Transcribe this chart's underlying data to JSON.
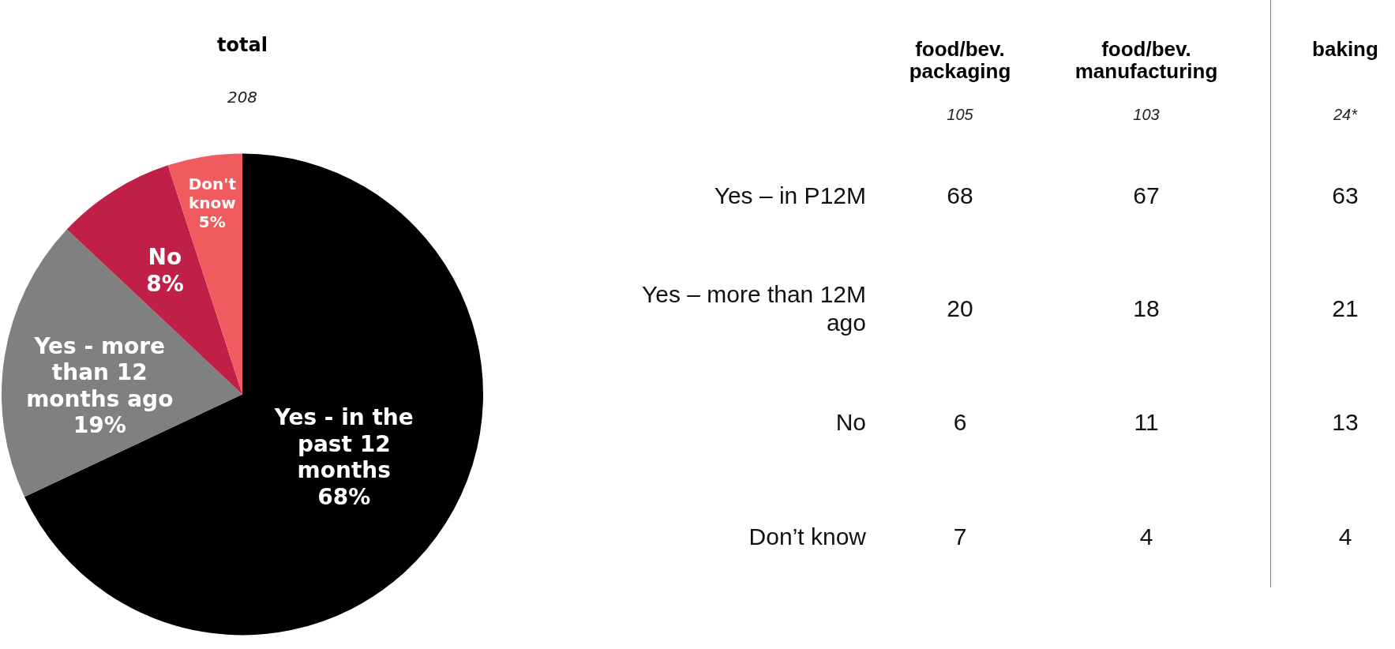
{
  "chart_data": [
    {
      "type": "pie",
      "title": "total",
      "subtitle": "208",
      "categories": [
        "Yes - in the past 12 months",
        "Yes - more than 12 months ago",
        "No",
        "Don't know"
      ],
      "values": [
        68,
        19,
        8,
        5
      ],
      "colors": [
        "#000000",
        "#808080",
        "#c01f48",
        "#ef5b5e"
      ],
      "value_labels": [
        "68%",
        "19%",
        "8%",
        "5%"
      ],
      "legend": false
    },
    {
      "type": "other",
      "categories": [
        "Yes – in P12M",
        "Yes – more than 12M ago",
        "No",
        "Don’t know"
      ],
      "series": [
        {
          "name": "food/bev. packaging",
          "values": [
            68,
            20,
            6,
            7
          ]
        },
        {
          "name": "food/bev. manufacturing",
          "values": [
            67,
            18,
            11,
            4
          ]
        },
        {
          "name": "baking",
          "values": [
            63,
            21,
            13,
            4
          ]
        }
      ],
      "annotations": [
        "105",
        "103",
        "24*"
      ],
      "data_labels": true
    }
  ]
}
